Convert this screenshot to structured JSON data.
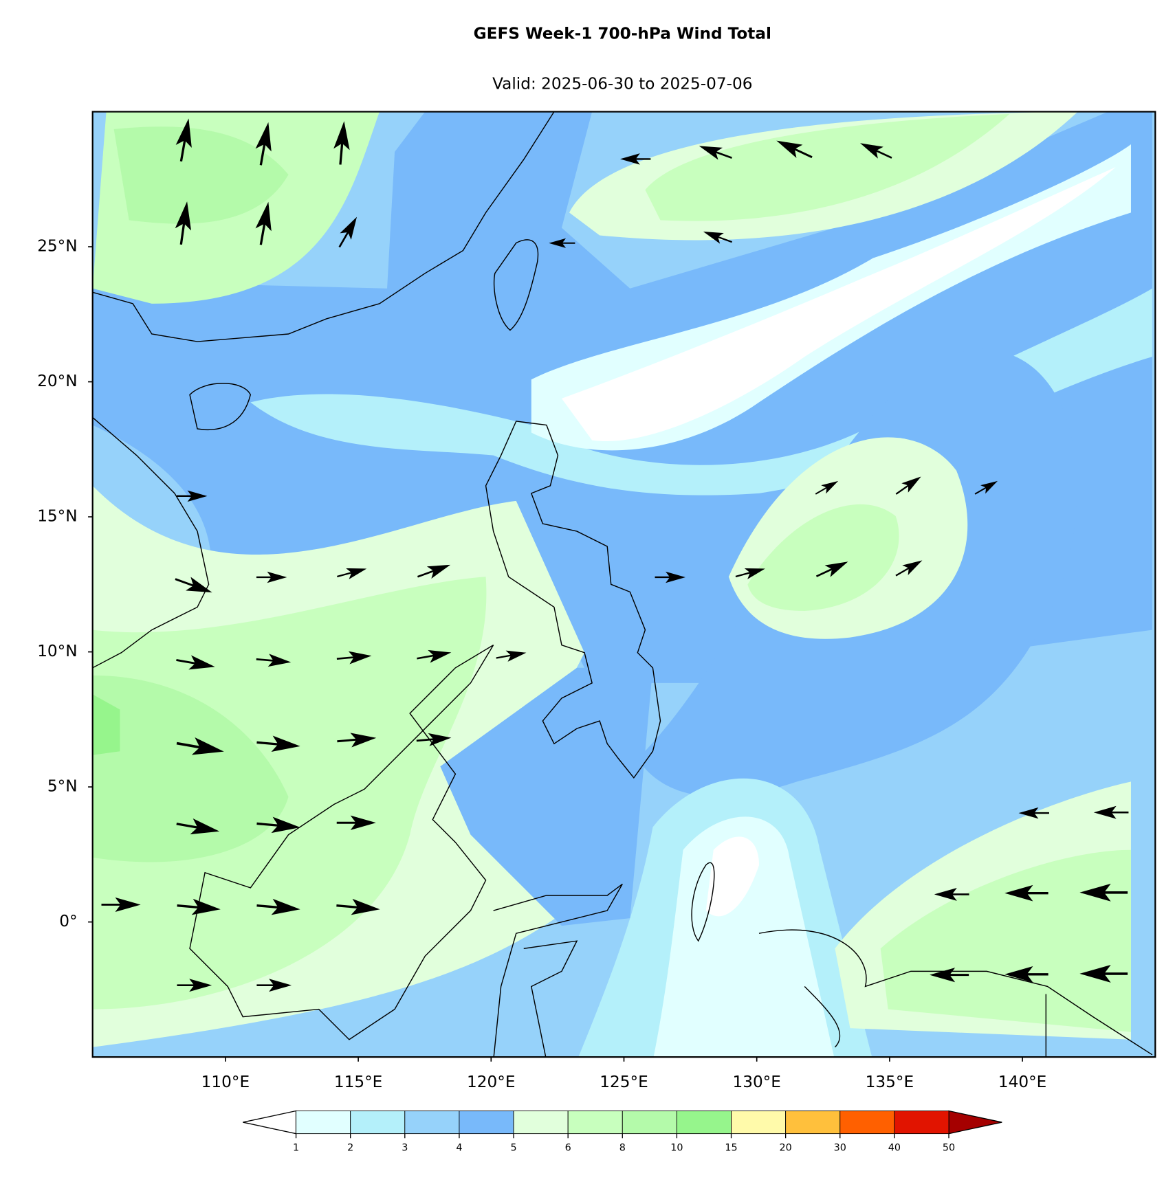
{
  "title": "GEFS Week-1 700-hPa Wind Total",
  "subtitle": "Valid: 2025-06-30 to 2025-07-06",
  "map": {
    "xlim": [
      105,
      145
    ],
    "ylim": [
      -5,
      30
    ],
    "xticks": [
      {
        "value": 110,
        "label": "110°E"
      },
      {
        "value": 115,
        "label": "115°E"
      },
      {
        "value": 120,
        "label": "120°E"
      },
      {
        "value": 125,
        "label": "125°E"
      },
      {
        "value": 130,
        "label": "130°E"
      },
      {
        "value": 135,
        "label": "135°E"
      },
      {
        "value": 140,
        "label": "140°E"
      }
    ],
    "yticks": [
      {
        "value": 0,
        "label": "0°"
      },
      {
        "value": 5,
        "label": "5°N"
      },
      {
        "value": 10,
        "label": "10°N"
      },
      {
        "value": 15,
        "label": "15°N"
      },
      {
        "value": 20,
        "label": "20°N"
      },
      {
        "value": 25,
        "label": "25°N"
      }
    ]
  },
  "colorbar": {
    "levels": [
      1,
      2,
      3,
      4,
      5,
      6,
      8,
      10,
      15,
      20,
      30,
      40,
      50
    ],
    "colors": [
      "#e1ffff",
      "#b4f0fa",
      "#96d2fa",
      "#78b9fa",
      "#e1ffdc",
      "#c8ffbe",
      "#b4faaa",
      "#96f58c",
      "#fffaaa",
      "#ffc03c",
      "#ff6000",
      "#e11400"
    ],
    "under_color": "#ffffff",
    "over_color": "#a50000"
  }
}
